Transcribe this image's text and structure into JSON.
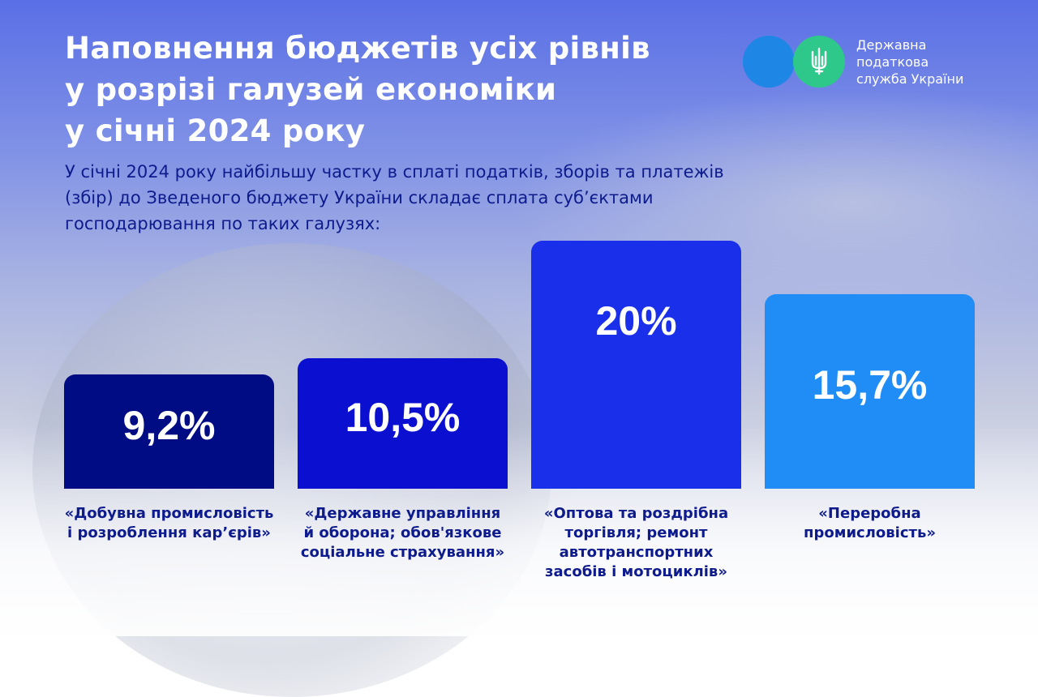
{
  "header": {
    "title": "Наповнення бюджетів усіх рівнів\nу розрізі галузей економіки\nу січні 2024 року",
    "subtitle": "У січні 2024 року найбільшу частку в сплаті податків, зборів та платежів (збір) до Зведеного бюджету України складає сплата суб’єктами господарювання по таких галузях:"
  },
  "logo": {
    "text": "Державна\nподаткова\nслужба України",
    "icon": "trident-icon",
    "colors": {
      "left_circle": "#1e87e6",
      "right_circle": "#2ec98a"
    }
  },
  "chart_data": {
    "type": "bar",
    "categories": [
      "«Добувна промисловість і розроблення кар’єрів»",
      "«Державне управління й оборона; обов'язкове соціальне страхування»",
      "«Оптова та роздрібна торгівля; ремонт автотранспортних засобів і мотоциклів»",
      "«Переробна промисловість»"
    ],
    "values": [
      9.2,
      10.5,
      20,
      15.7
    ],
    "value_labels": [
      "9,2%",
      "10,5%",
      "20%",
      "15,7%"
    ],
    "colors": [
      "#000c84",
      "#0b0fd0",
      "#1a2fea",
      "#1f8df5"
    ],
    "unit": "%",
    "ylim": [
      0,
      20
    ],
    "grid": false,
    "legend": "none"
  }
}
